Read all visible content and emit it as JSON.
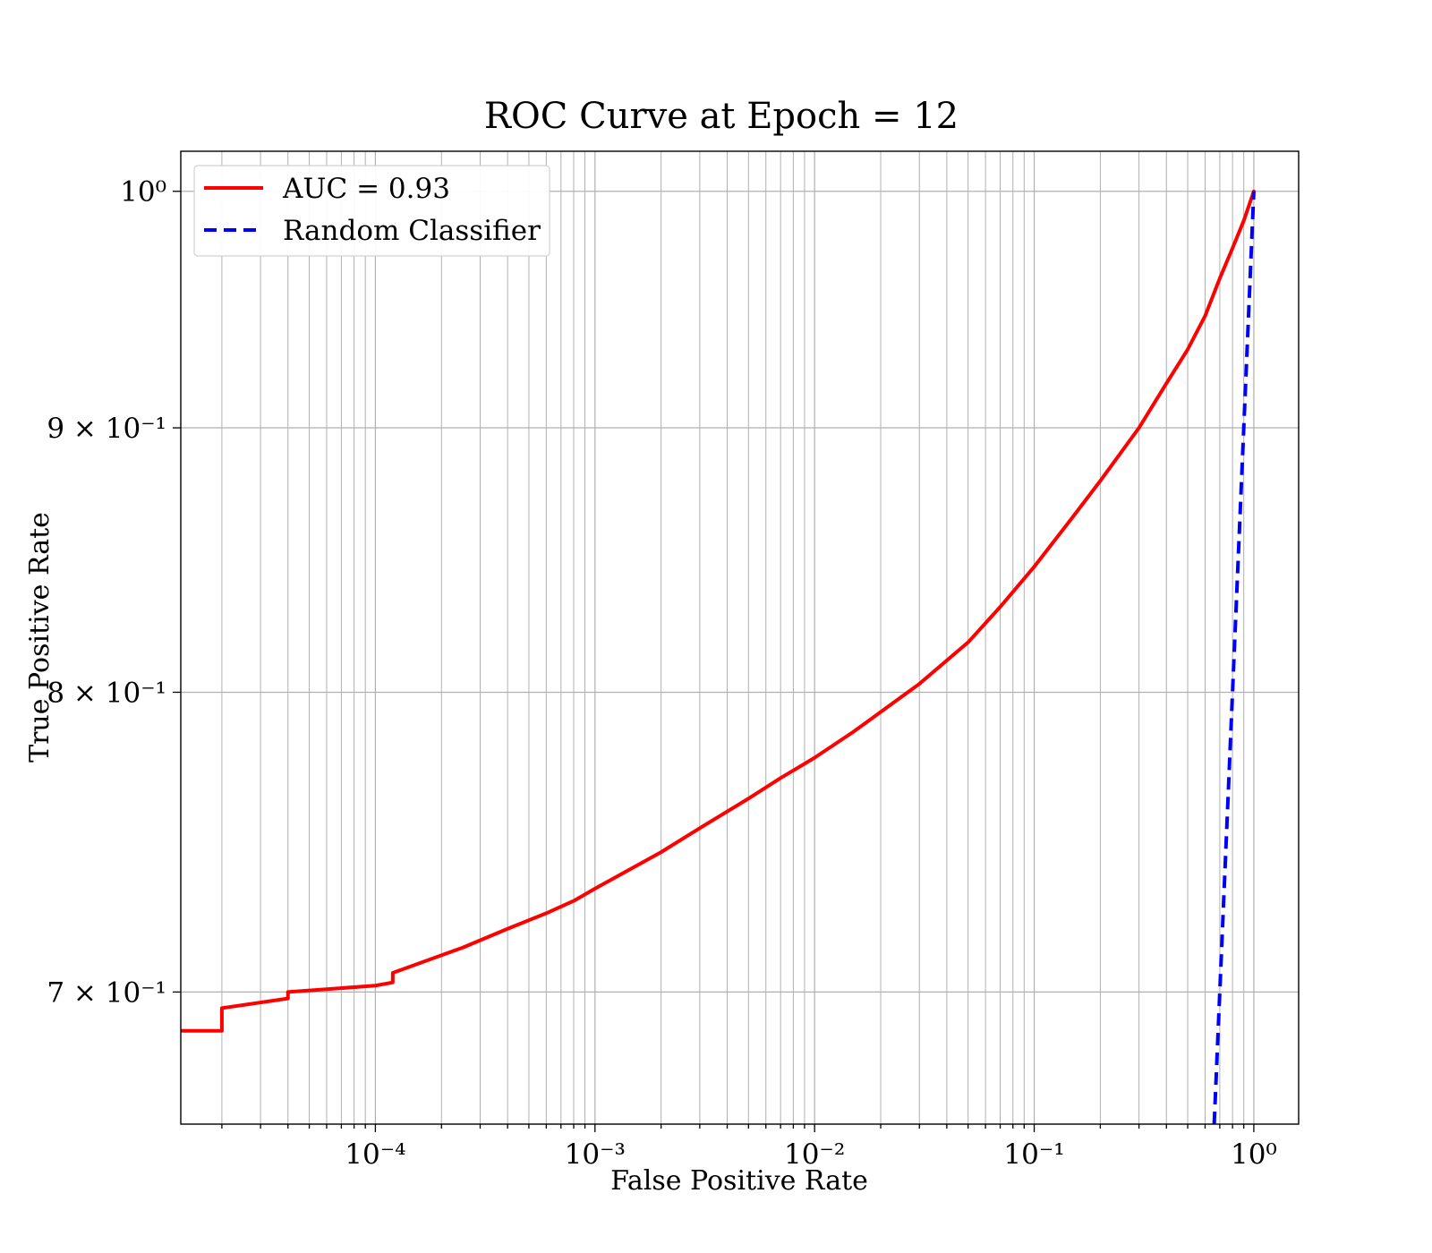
{
  "chart_data": {
    "type": "line",
    "title": "ROC Curve at Epoch = 12",
    "xlabel": "False Positive Rate",
    "ylabel": "True Positive Rate",
    "x_scale": "log",
    "y_scale": "log",
    "xlim": [
      1.3e-05,
      1.6
    ],
    "ylim": [
      0.66,
      1.018
    ],
    "grid": true,
    "legend_position": "top-left",
    "x_ticks": [
      {
        "value": 0.0001,
        "label": "10⁻⁴"
      },
      {
        "value": 0.001,
        "label": "10⁻³"
      },
      {
        "value": 0.01,
        "label": "10⁻²"
      },
      {
        "value": 0.1,
        "label": "10⁻¹"
      },
      {
        "value": 1,
        "label": "10⁰"
      }
    ],
    "y_ticks": [
      {
        "value": 0.7,
        "label": "7 × 10⁻¹"
      },
      {
        "value": 0.8,
        "label": "8 × 10⁻¹"
      },
      {
        "value": 0.9,
        "label": "9 × 10⁻¹"
      },
      {
        "value": 1,
        "label": "10⁰"
      }
    ],
    "series": [
      {
        "name": "AUC = 0.93",
        "color": "#ff0000",
        "style": "solid",
        "x": [
          1.3e-05,
          2e-05,
          2e-05,
          4e-05,
          4e-05,
          0.0001,
          0.00012,
          0.00012,
          0.00025,
          0.0004,
          0.0006,
          0.0008,
          0.001,
          0.002,
          0.003,
          0.005,
          0.007,
          0.01,
          0.015,
          0.02,
          0.03,
          0.05,
          0.07,
          0.1,
          0.15,
          0.2,
          0.3,
          0.4,
          0.5,
          0.6,
          0.7,
          0.8,
          0.9,
          1.0
        ],
        "y": [
          0.688,
          0.688,
          0.695,
          0.698,
          0.7,
          0.702,
          0.703,
          0.706,
          0.714,
          0.72,
          0.725,
          0.729,
          0.733,
          0.745,
          0.753,
          0.763,
          0.77,
          0.777,
          0.786,
          0.793,
          0.803,
          0.818,
          0.831,
          0.846,
          0.865,
          0.879,
          0.9,
          0.918,
          0.932,
          0.946,
          0.962,
          0.975,
          0.987,
          1.0
        ]
      },
      {
        "name": "Random Classifier",
        "color": "#0000ff",
        "style": "dashed",
        "x": [
          0.66,
          1.0
        ],
        "y": [
          0.66,
          1.0
        ]
      }
    ]
  }
}
